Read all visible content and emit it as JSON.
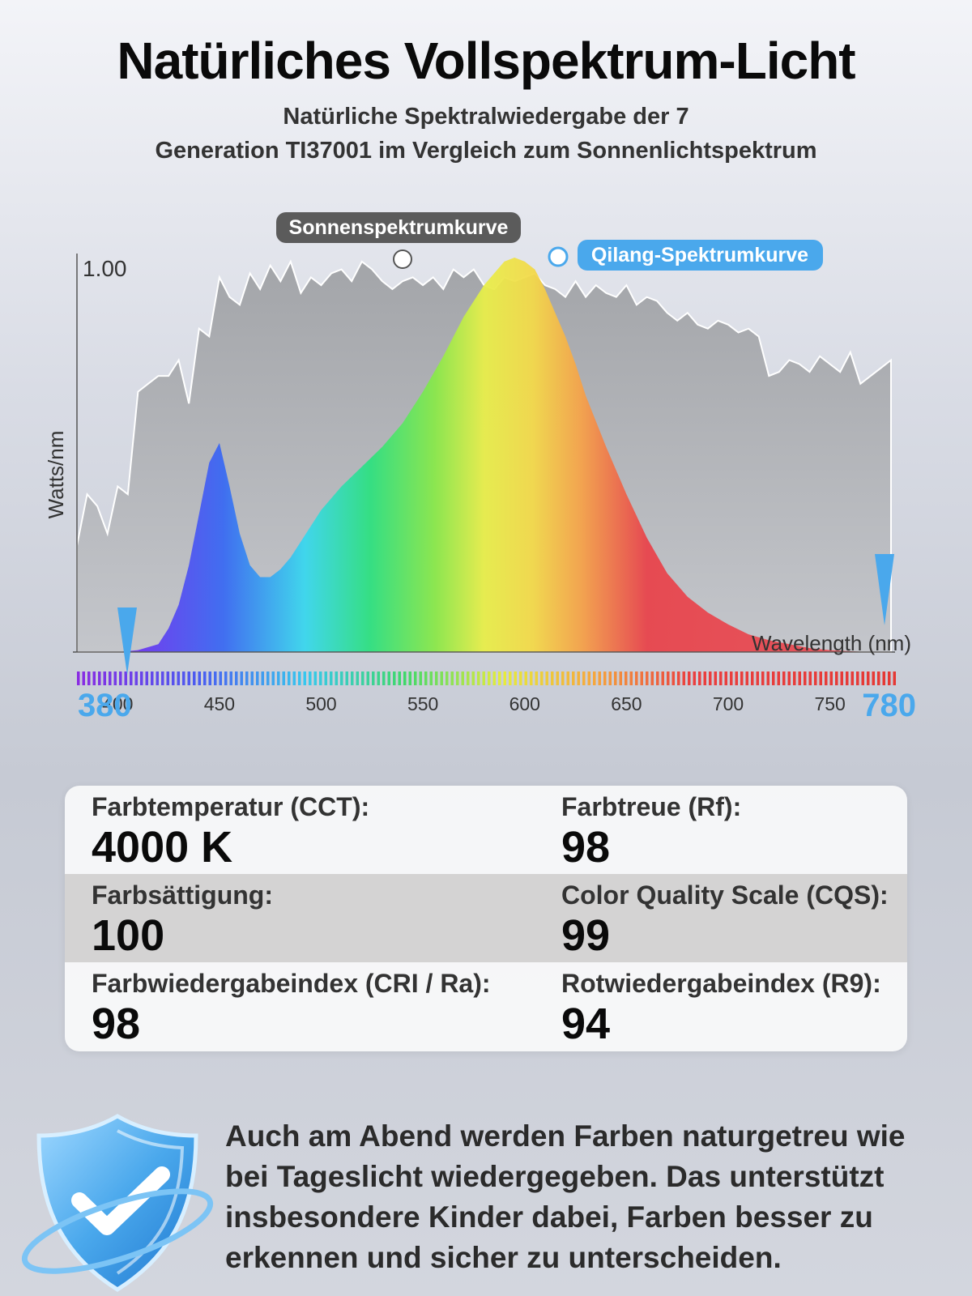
{
  "title": "Natürliches Vollspektrum-Licht",
  "subtitle_line1": "Natürliche Spektralwiedergabe der 7",
  "subtitle_line2": "Generation TI37001 im Vergleich zum Sonnenlichtspektrum",
  "chart_data": {
    "type": "area",
    "ylabel": "Watts/nm",
    "xlabel": "Wavelength (nm)",
    "ytick": "1.00",
    "xlim": [
      380,
      780
    ],
    "ylim": [
      0,
      1.0
    ],
    "x_ticks": [
      "400",
      "450",
      "500",
      "550",
      "600",
      "650",
      "700",
      "750"
    ],
    "range_start": "380",
    "range_end": "780",
    "series": [
      {
        "name": "Sonnenspektrumkurve",
        "color": "#a9abaf",
        "x": [
          380,
          385,
          390,
          395,
          400,
          405,
          410,
          415,
          420,
          425,
          430,
          435,
          440,
          445,
          450,
          455,
          460,
          465,
          470,
          475,
          480,
          485,
          490,
          495,
          500,
          505,
          510,
          515,
          520,
          525,
          530,
          535,
          540,
          545,
          550,
          555,
          560,
          565,
          570,
          575,
          580,
          585,
          590,
          595,
          600,
          605,
          610,
          615,
          620,
          625,
          630,
          635,
          640,
          645,
          650,
          655,
          660,
          665,
          670,
          675,
          680,
          685,
          690,
          695,
          700,
          705,
          710,
          715,
          720,
          725,
          730,
          735,
          740,
          745,
          750,
          755,
          760,
          765,
          770,
          775,
          780
        ],
        "values": [
          0.27,
          0.4,
          0.37,
          0.3,
          0.42,
          0.4,
          0.66,
          0.68,
          0.7,
          0.7,
          0.74,
          0.63,
          0.82,
          0.8,
          0.95,
          0.9,
          0.88,
          0.96,
          0.92,
          0.98,
          0.94,
          0.99,
          0.91,
          0.95,
          0.93,
          0.96,
          0.97,
          0.94,
          0.99,
          0.97,
          0.94,
          0.92,
          0.94,
          0.95,
          0.93,
          0.95,
          0.92,
          0.97,
          0.95,
          0.97,
          0.93,
          0.92,
          0.95,
          0.94,
          0.95,
          0.96,
          0.93,
          0.92,
          0.9,
          0.94,
          0.9,
          0.93,
          0.91,
          0.9,
          0.93,
          0.88,
          0.9,
          0.89,
          0.86,
          0.84,
          0.86,
          0.83,
          0.82,
          0.84,
          0.83,
          0.81,
          0.82,
          0.8,
          0.7,
          0.71,
          0.74,
          0.73,
          0.71,
          0.75,
          0.73,
          0.71,
          0.76,
          0.68,
          0.7,
          0.72,
          0.74
        ]
      },
      {
        "name": "Qilang-Spektrumkurve",
        "x": [
          380,
          400,
          410,
          420,
          425,
          430,
          435,
          440,
          445,
          450,
          455,
          460,
          465,
          470,
          475,
          480,
          485,
          490,
          495,
          500,
          510,
          520,
          530,
          540,
          550,
          560,
          570,
          580,
          590,
          595,
          600,
          605,
          610,
          615,
          620,
          625,
          630,
          640,
          650,
          660,
          670,
          680,
          690,
          700,
          710,
          720,
          730,
          740,
          750,
          760,
          770,
          780
        ],
        "values": [
          0.0,
          0.0,
          0.005,
          0.02,
          0.06,
          0.12,
          0.22,
          0.35,
          0.48,
          0.53,
          0.42,
          0.3,
          0.22,
          0.19,
          0.19,
          0.21,
          0.24,
          0.28,
          0.32,
          0.36,
          0.42,
          0.47,
          0.52,
          0.58,
          0.66,
          0.75,
          0.85,
          0.93,
          0.99,
          1.0,
          0.99,
          0.97,
          0.92,
          0.86,
          0.8,
          0.73,
          0.65,
          0.52,
          0.4,
          0.29,
          0.2,
          0.14,
          0.1,
          0.07,
          0.045,
          0.03,
          0.02,
          0.01,
          0.005,
          0.002,
          0.0,
          0.0
        ]
      }
    ]
  },
  "stats": [
    {
      "label": "Farbtemperatur (CCT):",
      "value": "4000 K"
    },
    {
      "label": "Farbtreue (Rf):",
      "value": "98"
    },
    {
      "label": "Farbsättigung:",
      "value": "100"
    },
    {
      "label": "Color Quality Scale (CQS):",
      "value": "99"
    },
    {
      "label": "Farbwiedergabeindex (CRI / Ra):",
      "value": "98"
    },
    {
      "label": "Rotwiedergabeindex (R9):",
      "value": "94"
    }
  ],
  "footer_text": "Auch am Abend werden Farben naturgetreu wie bei Tageslicht wiedergegeben. Das unterstützt insbesondere Kinder dabei, Farben besser zu erkennen und sicher zu unterscheiden.",
  "colors": {
    "accent_blue": "#4aa8ec",
    "sun_curve_fill": "#a9abaf"
  },
  "icons": [
    "shield-check-icon"
  ]
}
